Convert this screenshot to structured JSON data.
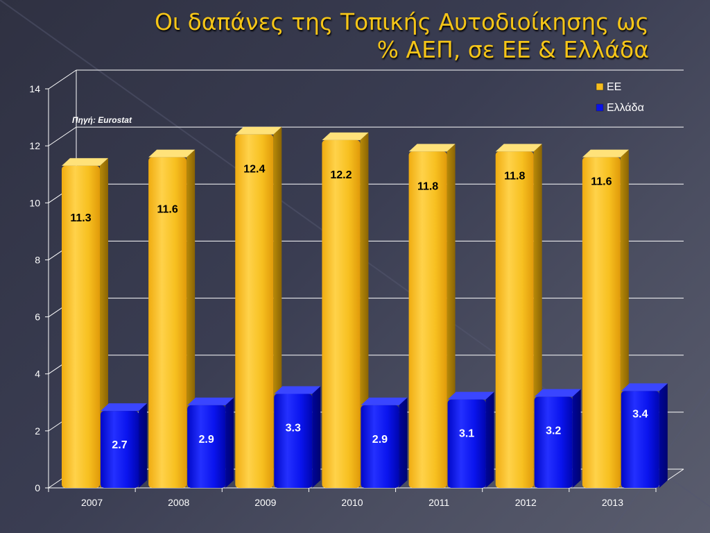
{
  "title_line1": "Οι δαπάνες της Τοπικής Αυτοδιοίκησης ως",
  "title_line2": "% ΑΕΠ, σε ΕΕ & Ελλάδα",
  "source_note": "Πηγή: Eurostat",
  "colors": {
    "title": "#f5c518",
    "series_ee": "#f6be1e",
    "series_gr": "#0a12e8",
    "background": "#353849"
  },
  "chart_data": {
    "type": "bar",
    "title": "Οι δαπάνες της Τοπικής Αυτοδιοίκησης ως % ΑΕΠ, σε ΕΕ & Ελλάδα",
    "categories": [
      "2007",
      "2008",
      "2009",
      "2010",
      "2011",
      "2012",
      "2013"
    ],
    "series": [
      {
        "name": "ΕΕ",
        "values": [
          11.3,
          11.6,
          12.4,
          12.2,
          11.8,
          11.8,
          11.6
        ]
      },
      {
        "name": "Ελλάδα",
        "values": [
          2.7,
          2.9,
          3.3,
          2.9,
          3.1,
          3.2,
          3.4
        ]
      }
    ],
    "ylim": [
      0,
      14
    ],
    "yticks": [
      0,
      2,
      4,
      6,
      8,
      10,
      12,
      14
    ],
    "grid": true,
    "legend": "top-right",
    "style": "3d-column"
  }
}
